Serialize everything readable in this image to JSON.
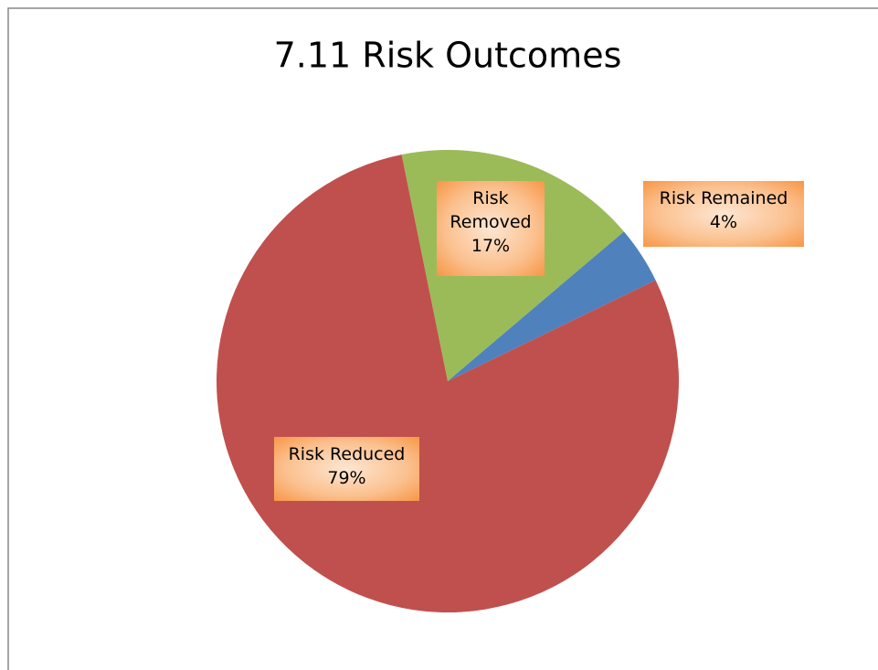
{
  "chart_data": {
    "type": "pie",
    "title": "7.11 Risk Outcomes",
    "categories": [
      "Risk Removed",
      "Risk Remained",
      "Risk Reduced"
    ],
    "values": [
      17,
      4,
      79
    ],
    "value_labels": [
      "17%",
      "4%",
      "79%"
    ],
    "colors": [
      "#9bbb59",
      "#4f81bd",
      "#c0504d"
    ]
  }
}
